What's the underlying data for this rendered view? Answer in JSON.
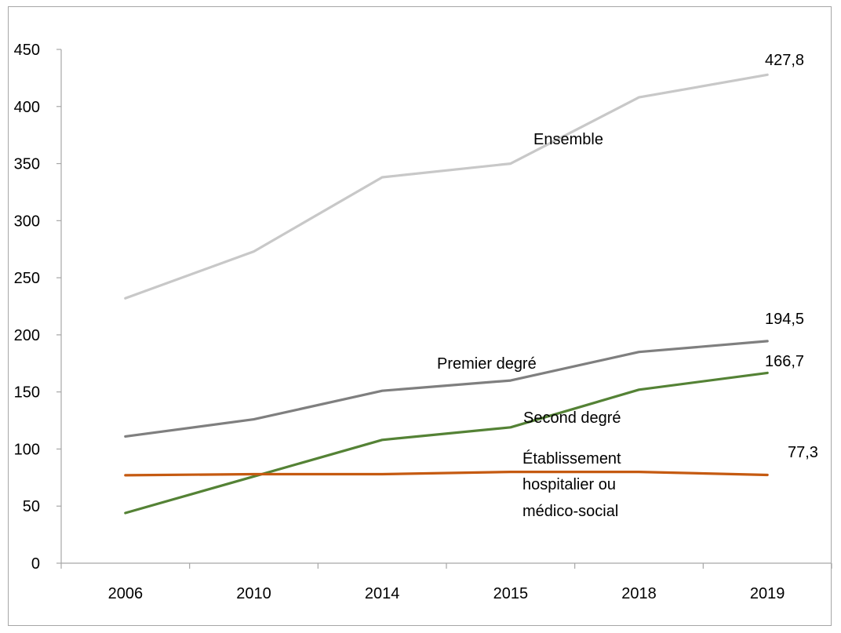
{
  "chart_data": {
    "type": "line",
    "title": "",
    "xlabel": "",
    "ylabel": "",
    "categories": [
      "2006",
      "2010",
      "2014",
      "2015",
      "2018",
      "2019"
    ],
    "ylim": [
      0,
      450
    ],
    "yticks": [
      0,
      50,
      100,
      150,
      200,
      250,
      300,
      350,
      400,
      450
    ],
    "grid": false,
    "legend": "none",
    "series": [
      {
        "name": "Ensemble",
        "color": "#c8c8c8",
        "values": [
          232,
          273,
          338,
          350,
          408,
          427.8
        ],
        "end_label": "427,8"
      },
      {
        "name": "Premier degré",
        "color": "#7f7f7f",
        "values": [
          111,
          126,
          151,
          160,
          185,
          194.5
        ],
        "end_label": "194,5"
      },
      {
        "name": "Second degré",
        "color": "#548235",
        "values": [
          44,
          76,
          108,
          119,
          152,
          166.7
        ],
        "end_label": "166,7"
      },
      {
        "name": "Établissement hospitalier ou médico-social",
        "name_lines": [
          "Établissement",
          "hospitalier ou",
          "médico-social"
        ],
        "color": "#c55a11",
        "values": [
          77,
          78,
          78,
          80,
          80,
          77.3
        ],
        "end_label": "77,3"
      }
    ]
  }
}
